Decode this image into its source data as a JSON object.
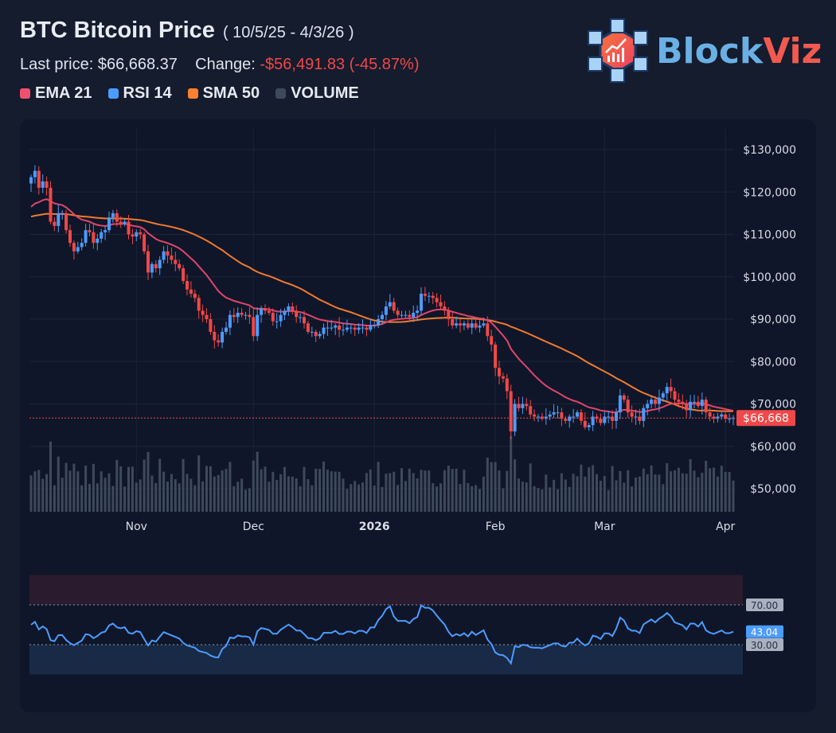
{
  "header": {
    "title": "BTC Bitcoin Price",
    "range": "( 10/5/25 - 4/3/26 )",
    "last_label": "Last price:",
    "last_value": "$66,668.37",
    "change_label": "Change:",
    "change_value": "-$56,491.83 (-45.87%)"
  },
  "legend": [
    {
      "label": "EMA 21",
      "color": "#f0506e"
    },
    {
      "label": "RSI 14",
      "color": "#4c9cff"
    },
    {
      "label": "SMA 50",
      "color": "#ff8030"
    },
    {
      "label": "VOLUME",
      "color": "#3e4a5c"
    }
  ],
  "logo": {
    "part1": "Block",
    "part2": "Viz"
  },
  "colors": {
    "up": "#4c9cff",
    "down": "#f04848",
    "ema": "#e0456a",
    "sma": "#f07a30",
    "rsi": "#4c9cff",
    "volume": "#3e4a5c"
  },
  "chart_data": {
    "type": "candlestick",
    "start_date": "2025-10-05",
    "end_date": "2026-04-03",
    "y_unit": "USD thousands",
    "ylim": [
      45,
      135
    ],
    "y_ticks": [
      {
        "v": 130,
        "label": "$130,000"
      },
      {
        "v": 120,
        "label": "$120,000"
      },
      {
        "v": 110,
        "label": "$110,000"
      },
      {
        "v": 100,
        "label": "$100,000"
      },
      {
        "v": 90,
        "label": "$90,000"
      },
      {
        "v": 80,
        "label": "$80,000"
      },
      {
        "v": 70,
        "label": "$70,000"
      },
      {
        "v": 60,
        "label": "$60,000"
      },
      {
        "v": 50,
        "label": "$50,000"
      }
    ],
    "x_ticks": [
      {
        "day": 27,
        "label": "Nov"
      },
      {
        "day": 57,
        "label": "Dec"
      },
      {
        "day": 88,
        "label": "2026",
        "bold": true
      },
      {
        "day": 119,
        "label": "Feb"
      },
      {
        "day": 147,
        "label": "Mar"
      },
      {
        "day": 178,
        "label": "Apr"
      }
    ],
    "last_price_label": "$66,668",
    "closes": [
      123.5,
      125,
      121,
      122.5,
      121,
      113,
      112,
      115,
      115,
      111,
      108,
      106,
      107,
      108,
      111,
      110.5,
      108,
      109,
      110.5,
      111,
      114,
      115,
      113,
      112.5,
      113,
      110,
      109.5,
      110.5,
      110,
      106,
      101,
      103,
      102,
      104,
      106,
      105,
      104,
      103,
      102,
      99,
      97,
      96,
      95,
      92,
      91,
      90,
      87,
      85,
      84.5,
      87,
      88,
      91,
      90.5,
      91.5,
      91,
      91,
      90.5,
      86,
      91,
      92.5,
      92,
      91.5,
      89.5,
      89.5,
      91,
      92,
      93,
      92,
      90.5,
      90.5,
      89,
      87,
      87,
      86,
      86.5,
      88,
      88,
      88,
      88.5,
      87.5,
      87.5,
      88,
      88,
      87.5,
      88,
      88,
      87.5,
      88.5,
      88.5,
      90,
      91,
      93,
      94,
      92,
      91,
      91,
      91,
      90.5,
      91.5,
      92,
      96,
      95.5,
      95.5,
      95,
      94,
      93,
      92,
      90,
      88.5,
      89,
      88.5,
      89,
      88,
      89,
      88,
      88.5,
      89,
      86,
      84,
      78.5,
      76.5,
      76,
      73,
      63.5,
      70,
      69,
      70,
      69.5,
      67.5,
      67,
      67,
      66.5,
      67,
      67.5,
      68,
      68,
      66.5,
      66,
      67,
      67,
      68,
      66,
      64.5,
      65,
      67,
      66.5,
      65.5,
      67,
      67,
      66,
      68,
      72,
      71,
      68,
      67,
      67,
      66,
      69,
      70,
      71,
      70,
      71.5,
      72.5,
      74,
      73,
      71,
      70.5,
      70,
      68.5,
      70.5,
      70.5,
      69.5,
      71,
      68,
      67,
      66.5,
      67,
      67.5,
      66.5,
      66.5,
      66.67
    ],
    "rsi": {
      "upper": 70,
      "lower": 30,
      "last": 43.04,
      "upper_label": "70.00",
      "lower_label": "30.00",
      "last_label": "43.04"
    }
  }
}
